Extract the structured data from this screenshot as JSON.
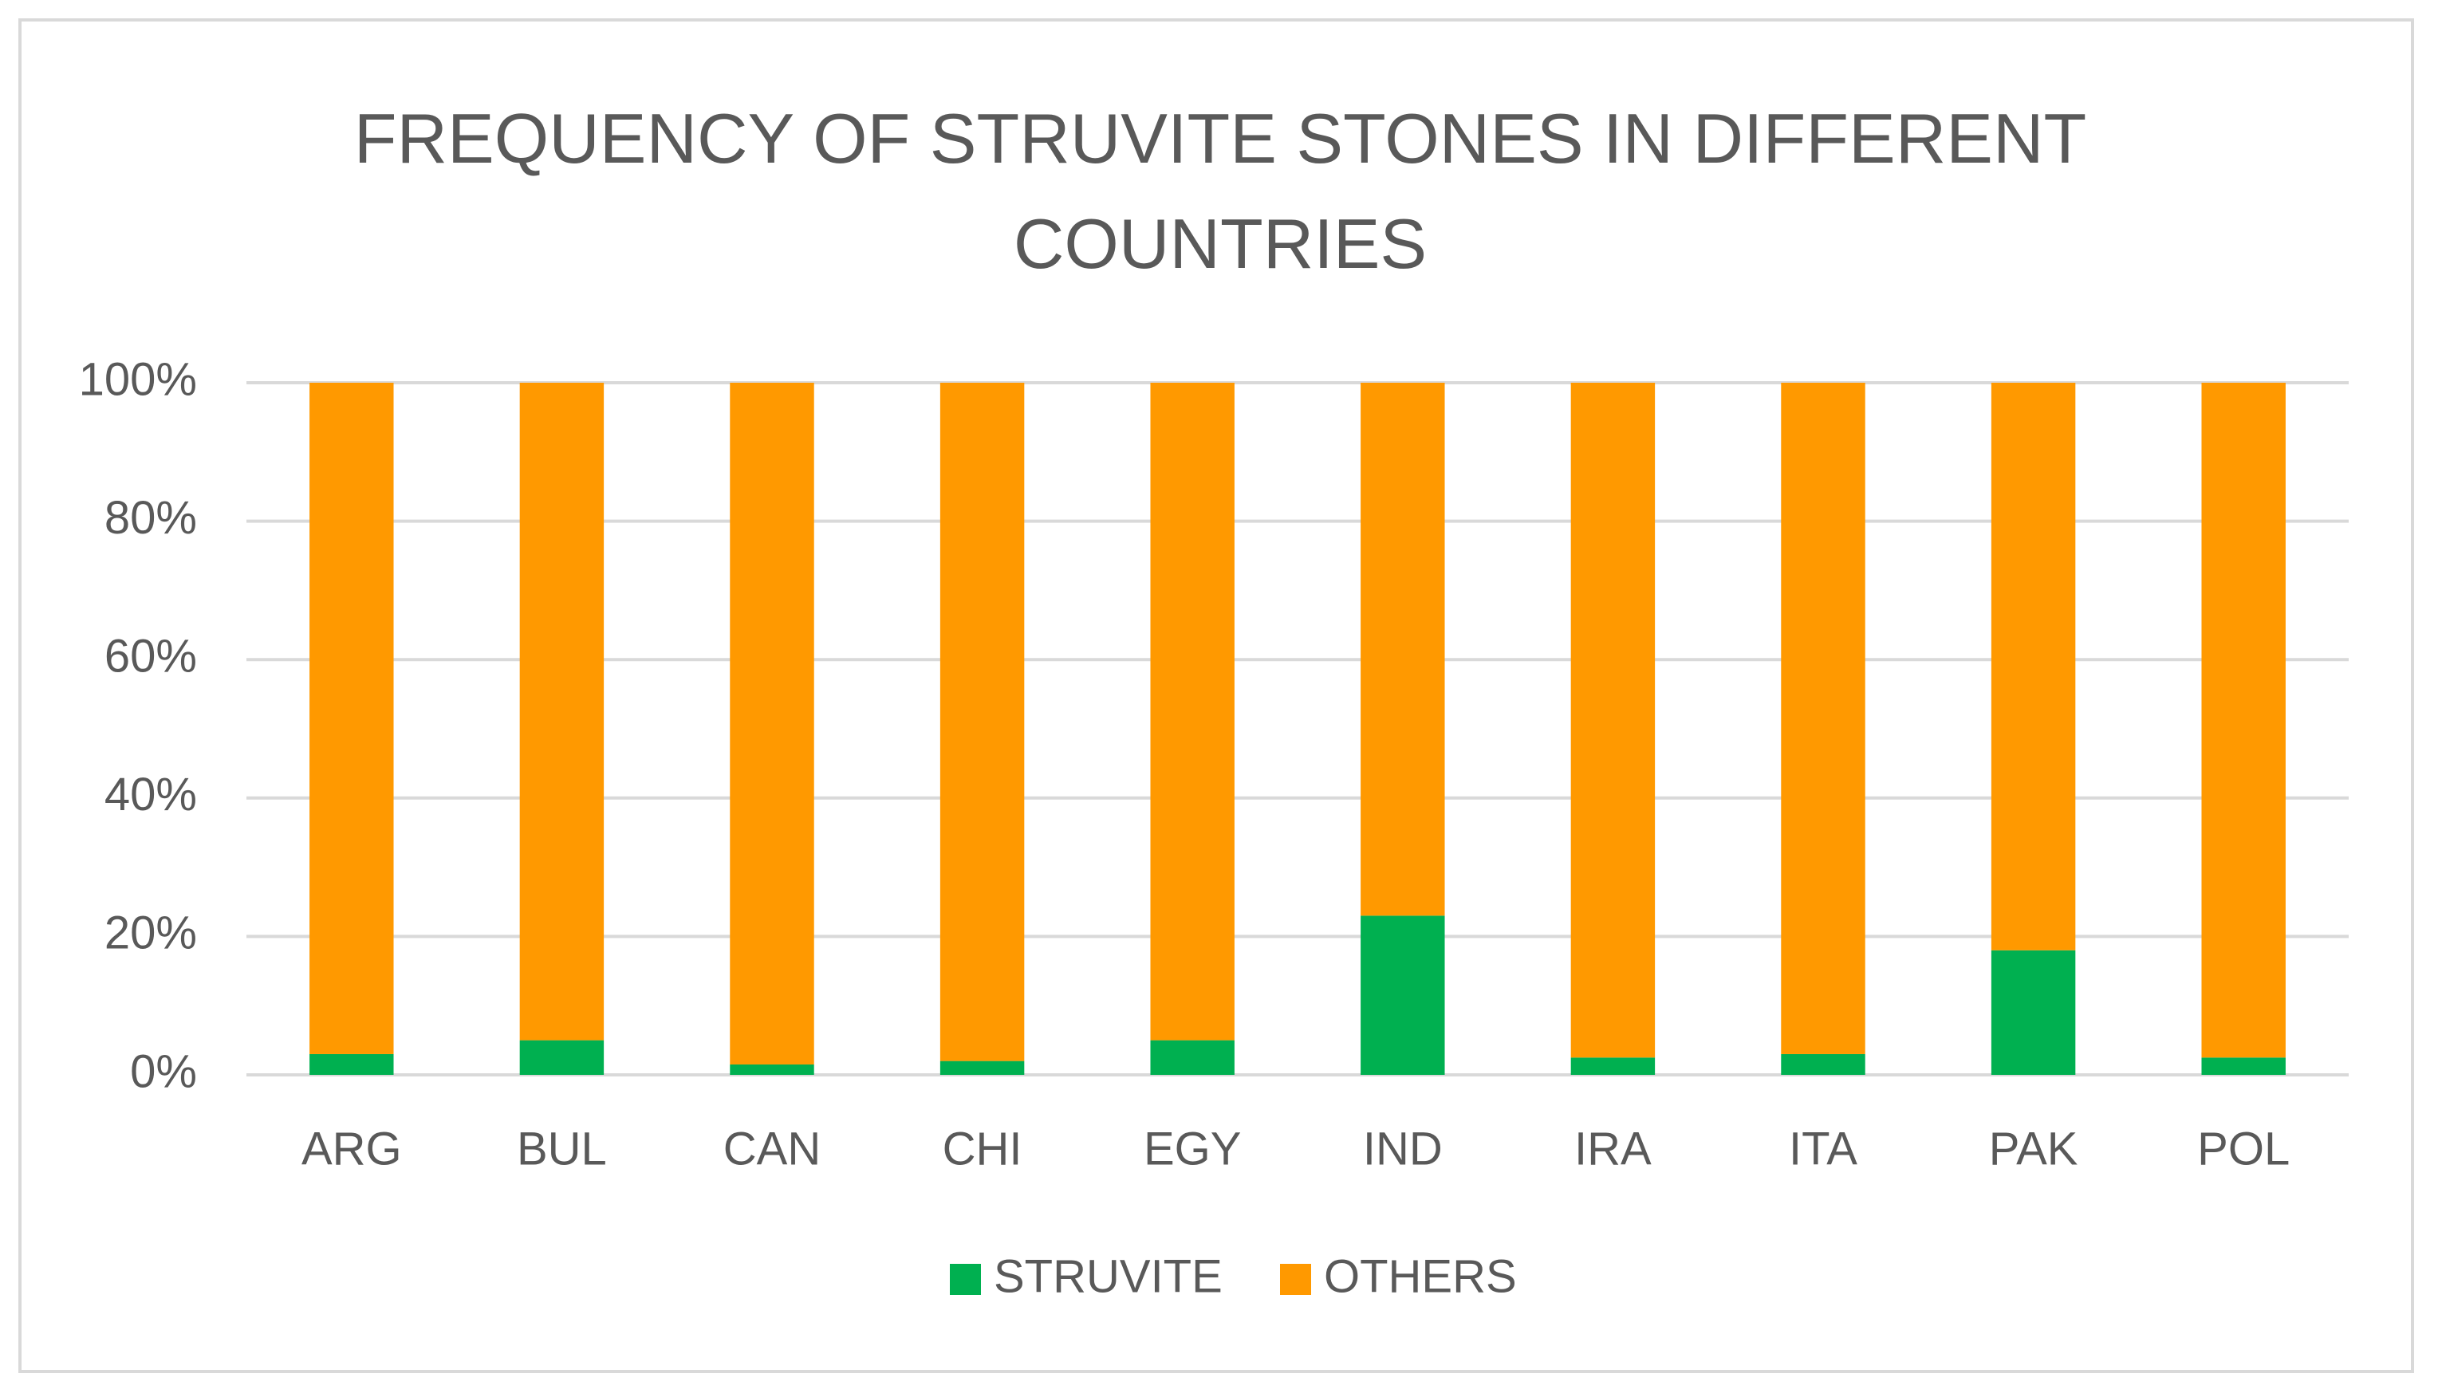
{
  "chart_data": {
    "type": "stacked_bar",
    "title": "FREQUENCY OF STRUVITE STONES IN DIFFERENT COUNTRIES",
    "categories": [
      "ARG",
      "BUL",
      "CAN",
      "CHI",
      "EGY",
      "IND",
      "IRA",
      "ITA",
      "PAK",
      "POL"
    ],
    "series": [
      {
        "name": "STRUVITE",
        "color": "#00b050",
        "values": [
          3,
          5,
          1.5,
          2,
          5,
          23,
          2.5,
          3,
          18,
          2.5
        ]
      },
      {
        "name": "OTHERS",
        "color": "#ff9900",
        "values": [
          97,
          95,
          98.5,
          98,
          95,
          77,
          97.5,
          97,
          82,
          97.5
        ]
      }
    ],
    "ylim": [
      0,
      100
    ],
    "yticks": [
      {
        "value": 0,
        "label": "0%"
      },
      {
        "value": 20,
        "label": "20%"
      },
      {
        "value": 40,
        "label": "40%"
      },
      {
        "value": 60,
        "label": "60%"
      },
      {
        "value": 80,
        "label": "80%"
      },
      {
        "value": 100,
        "label": "100%"
      }
    ],
    "grid": true,
    "legend": "bottom"
  }
}
